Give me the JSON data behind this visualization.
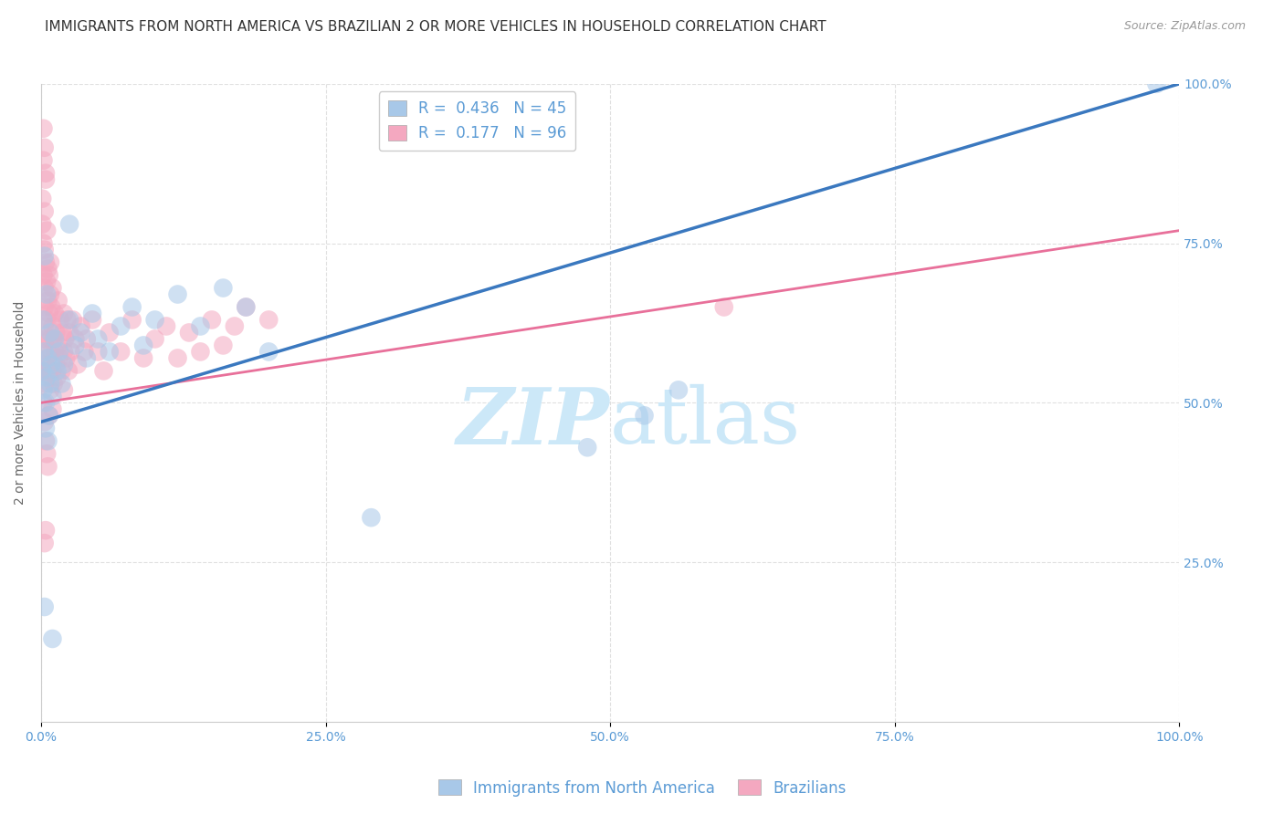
{
  "title": "IMMIGRANTS FROM NORTH AMERICA VS BRAZILIAN 2 OR MORE VEHICLES IN HOUSEHOLD CORRELATION CHART",
  "source": "Source: ZipAtlas.com",
  "ylabel": "2 or more Vehicles in Household",
  "xlim": [
    0,
    1.0
  ],
  "ylim": [
    0,
    1.0
  ],
  "xtick_labels": [
    "0.0%",
    "25.0%",
    "50.0%",
    "75.0%",
    "100.0%"
  ],
  "xtick_positions": [
    0.0,
    0.25,
    0.5,
    0.75,
    1.0
  ],
  "ytick_labels": [
    "25.0%",
    "50.0%",
    "75.0%",
    "100.0%"
  ],
  "ytick_positions": [
    0.25,
    0.5,
    0.75,
    1.0
  ],
  "blue_R": 0.436,
  "blue_N": 45,
  "pink_R": 0.177,
  "pink_N": 96,
  "blue_color": "#a8c8e8",
  "pink_color": "#f4a8c0",
  "blue_line_color": "#3a78bf",
  "pink_line_color": "#e8709a",
  "watermark_color": "#cce8f8",
  "title_color": "#333333",
  "source_color": "#999999",
  "tick_color": "#5b9bd5",
  "ylabel_color": "#666666",
  "grid_color": "#e0e0e0",
  "legend_text_color": "#5b9bd5",
  "blue_intercept": 0.47,
  "blue_slope": 0.53,
  "pink_intercept": 0.5,
  "pink_slope": 0.27,
  "blue_scatter": [
    [
      0.001,
      0.55
    ],
    [
      0.002,
      0.52
    ],
    [
      0.003,
      0.58
    ],
    [
      0.004,
      0.5
    ],
    [
      0.005,
      0.54
    ],
    [
      0.006,
      0.57
    ],
    [
      0.007,
      0.48
    ],
    [
      0.008,
      0.53
    ],
    [
      0.009,
      0.56
    ],
    [
      0.01,
      0.51
    ],
    [
      0.012,
      0.6
    ],
    [
      0.014,
      0.55
    ],
    [
      0.016,
      0.58
    ],
    [
      0.018,
      0.53
    ],
    [
      0.02,
      0.56
    ],
    [
      0.025,
      0.63
    ],
    [
      0.03,
      0.59
    ],
    [
      0.035,
      0.61
    ],
    [
      0.04,
      0.57
    ],
    [
      0.045,
      0.64
    ],
    [
      0.05,
      0.6
    ],
    [
      0.06,
      0.58
    ],
    [
      0.07,
      0.62
    ],
    [
      0.08,
      0.65
    ],
    [
      0.09,
      0.59
    ],
    [
      0.1,
      0.63
    ],
    [
      0.12,
      0.67
    ],
    [
      0.14,
      0.62
    ],
    [
      0.16,
      0.68
    ],
    [
      0.18,
      0.65
    ],
    [
      0.003,
      0.73
    ],
    [
      0.025,
      0.78
    ],
    [
      0.2,
      0.58
    ],
    [
      0.003,
      0.18
    ],
    [
      0.01,
      0.13
    ],
    [
      0.29,
      0.32
    ],
    [
      0.48,
      0.43
    ],
    [
      0.53,
      0.48
    ],
    [
      0.56,
      0.52
    ],
    [
      0.002,
      0.63
    ],
    [
      0.005,
      0.67
    ],
    [
      0.008,
      0.61
    ],
    [
      0.004,
      0.46
    ],
    [
      0.006,
      0.44
    ],
    [
      0.98,
      1.0
    ]
  ],
  "pink_scatter": [
    [
      0.001,
      0.82
    ],
    [
      0.001,
      0.78
    ],
    [
      0.002,
      0.75
    ],
    [
      0.002,
      0.88
    ],
    [
      0.002,
      0.7
    ],
    [
      0.003,
      0.8
    ],
    [
      0.003,
      0.74
    ],
    [
      0.003,
      0.65
    ],
    [
      0.003,
      0.68
    ],
    [
      0.004,
      0.72
    ],
    [
      0.004,
      0.6
    ],
    [
      0.004,
      0.85
    ],
    [
      0.004,
      0.3
    ],
    [
      0.005,
      0.69
    ],
    [
      0.005,
      0.63
    ],
    [
      0.005,
      0.77
    ],
    [
      0.005,
      0.55
    ],
    [
      0.006,
      0.66
    ],
    [
      0.006,
      0.71
    ],
    [
      0.006,
      0.58
    ],
    [
      0.007,
      0.64
    ],
    [
      0.007,
      0.7
    ],
    [
      0.007,
      0.55
    ],
    [
      0.008,
      0.67
    ],
    [
      0.008,
      0.6
    ],
    [
      0.008,
      0.72
    ],
    [
      0.008,
      0.52
    ],
    [
      0.009,
      0.65
    ],
    [
      0.009,
      0.58
    ],
    [
      0.01,
      0.62
    ],
    [
      0.01,
      0.55
    ],
    [
      0.01,
      0.68
    ],
    [
      0.01,
      0.49
    ],
    [
      0.011,
      0.6
    ],
    [
      0.011,
      0.53
    ],
    [
      0.012,
      0.58
    ],
    [
      0.012,
      0.64
    ],
    [
      0.013,
      0.56
    ],
    [
      0.013,
      0.61
    ],
    [
      0.014,
      0.54
    ],
    [
      0.015,
      0.59
    ],
    [
      0.015,
      0.66
    ],
    [
      0.016,
      0.57
    ],
    [
      0.017,
      0.63
    ],
    [
      0.018,
      0.55
    ],
    [
      0.019,
      0.61
    ],
    [
      0.02,
      0.58
    ],
    [
      0.02,
      0.64
    ],
    [
      0.02,
      0.52
    ],
    [
      0.021,
      0.6
    ],
    [
      0.022,
      0.57
    ],
    [
      0.023,
      0.63
    ],
    [
      0.024,
      0.55
    ],
    [
      0.025,
      0.61
    ],
    [
      0.026,
      0.58
    ],
    [
      0.028,
      0.63
    ],
    [
      0.03,
      0.6
    ],
    [
      0.032,
      0.56
    ],
    [
      0.035,
      0.62
    ],
    [
      0.038,
      0.58
    ],
    [
      0.04,
      0.6
    ],
    [
      0.045,
      0.63
    ],
    [
      0.05,
      0.58
    ],
    [
      0.055,
      0.55
    ],
    [
      0.06,
      0.61
    ],
    [
      0.07,
      0.58
    ],
    [
      0.08,
      0.63
    ],
    [
      0.09,
      0.57
    ],
    [
      0.1,
      0.6
    ],
    [
      0.11,
      0.62
    ],
    [
      0.12,
      0.57
    ],
    [
      0.13,
      0.61
    ],
    [
      0.14,
      0.58
    ],
    [
      0.15,
      0.63
    ],
    [
      0.16,
      0.59
    ],
    [
      0.17,
      0.62
    ],
    [
      0.18,
      0.65
    ],
    [
      0.004,
      0.44
    ],
    [
      0.006,
      0.4
    ],
    [
      0.002,
      0.5
    ],
    [
      0.003,
      0.47
    ],
    [
      0.005,
      0.42
    ],
    [
      0.007,
      0.48
    ],
    [
      0.003,
      0.56
    ],
    [
      0.004,
      0.53
    ],
    [
      0.006,
      0.57
    ],
    [
      0.008,
      0.54
    ],
    [
      0.2,
      0.63
    ],
    [
      0.003,
      0.28
    ],
    [
      0.6,
      0.65
    ],
    [
      0.002,
      0.93
    ],
    [
      0.003,
      0.9
    ],
    [
      0.004,
      0.86
    ],
    [
      0.001,
      0.55
    ],
    [
      0.002,
      0.6
    ],
    [
      0.003,
      0.62
    ]
  ],
  "title_fontsize": 11,
  "label_fontsize": 10,
  "tick_fontsize": 10,
  "legend_fontsize": 12,
  "source_fontsize": 9
}
